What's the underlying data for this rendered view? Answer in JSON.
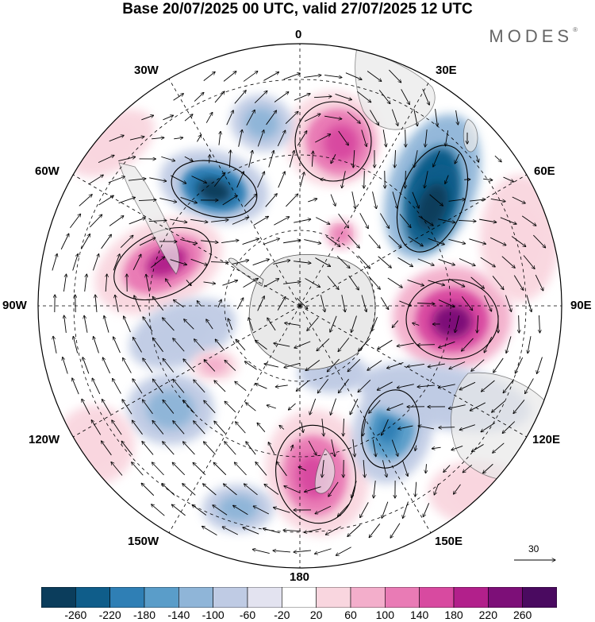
{
  "title": "Base 20/07/2025 00 UTC, valid 27/07/2025 12 UTC",
  "brand": "MODES",
  "brand_mark": "®",
  "longitude_labels": {
    "lon_0": "0",
    "lon_30e": "30E",
    "lon_60e": "60E",
    "lon_90e": "90E",
    "lon_120e": "120E",
    "lon_150e": "150E",
    "lon_180": "180",
    "lon_150w": "150W",
    "lon_120w": "120W",
    "lon_90w": "90W",
    "lon_60w": "60W",
    "lon_30w": "30W"
  },
  "colorbar": {
    "levels": [
      "-260",
      "-220",
      "-180",
      "-140",
      "-100",
      "-60",
      "-20",
      "20",
      "60",
      "100",
      "140",
      "180",
      "220",
      "260"
    ],
    "colors": [
      "#0b3d5c",
      "#0f5d8a",
      "#2f7fb5",
      "#5a9dc9",
      "#8fb5d8",
      "#bfcbe4",
      "#e3e3f0",
      "#ffffff",
      "#f9d6df",
      "#f3aecb",
      "#e97bb5",
      "#d84aa0",
      "#b2208b",
      "#7d0f78",
      "#4a0a60"
    ]
  },
  "vector_reference": {
    "label": "30"
  },
  "colors": {
    "land": "#e9e9e9",
    "grid": "#000000"
  }
}
